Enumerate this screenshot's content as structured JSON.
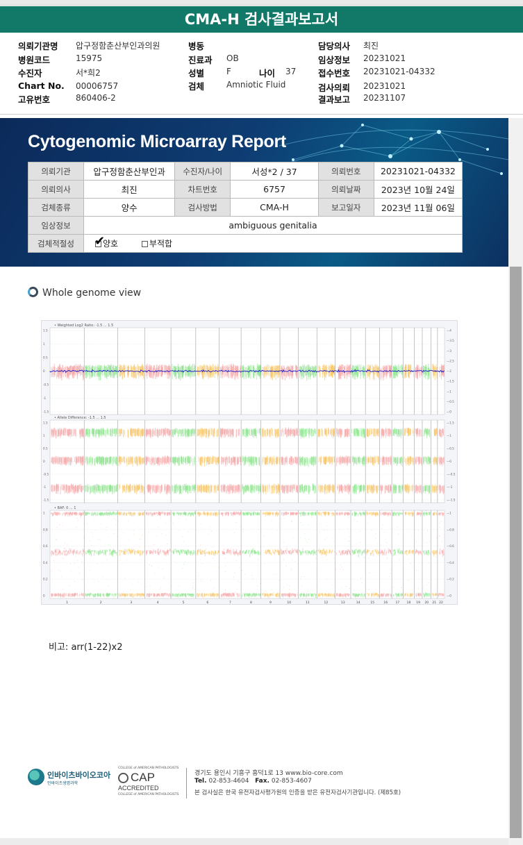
{
  "report_title": "CMA-H 검사결과보고서",
  "header_info": {
    "institution_label": "의뢰기관명",
    "institution": "압구정함춘산부인과의원",
    "hospital_code_label": "병원코드",
    "hospital_code": "15975",
    "recipient_label": "수진자",
    "recipient": "서*희2",
    "chart_no_label": "Chart No.",
    "chart_no": "00006757",
    "unique_no_label": "고유번호",
    "unique_no": "860406-2",
    "ward_label": "병동",
    "ward": "",
    "dept_label": "진료과",
    "dept": "OB",
    "sex_label": "성별",
    "sex": "F",
    "age_label": "나이",
    "age": "37",
    "specimen_label": "검체",
    "specimen": "Amniotic Fluid",
    "doctor_label": "담당의사",
    "doctor": "최진",
    "clinical_label": "임상정보",
    "clinical": "20231021",
    "receipt_label": "접수번호",
    "receipt": "20231021-04332",
    "request_label": "검사의뢰",
    "request": "20231021",
    "result_label": "결과보고",
    "result": "20231107"
  },
  "banner": {
    "title": "Cytogenomic Microarray Report",
    "rows": [
      [
        {
          "h": "의뢰기관"
        },
        {
          "v": "압구정함춘산부인과"
        },
        {
          "h": "수진자/나이"
        },
        {
          "v": "서성*2 / 37"
        },
        {
          "h": "의뢰번호"
        },
        {
          "v": "20231021-04332"
        }
      ],
      [
        {
          "h": "의뢰의사"
        },
        {
          "v": "최진"
        },
        {
          "h": "차트번호"
        },
        {
          "v": "6757"
        },
        {
          "h": "의뢰날짜"
        },
        {
          "v": "2023년 10월 24일"
        }
      ],
      [
        {
          "h": "검체종류"
        },
        {
          "v": "양수"
        },
        {
          "h": "검사방법"
        },
        {
          "v": "CMA-H"
        },
        {
          "h": "보고일자"
        },
        {
          "v": "2023년 11월 06일"
        }
      ]
    ],
    "clinical_label": "임상정보",
    "clinical_value": "ambiguous genitalia",
    "fitness_label": "검체적절성",
    "fitness_good": "양호",
    "fitness_bad": "부적합",
    "fitness_checked": "양호"
  },
  "section_title": "Whole genome view",
  "plot": {
    "panel1_title": "Weighted Log2 Ratio: -1.5 ... 1.5",
    "panel2_title": "Allele Difference: -1.5 ... 1.5",
    "panel3_title": "BAF: 0 ... 1",
    "panel1_left_ticks": [
      "1.5",
      "1",
      "0.5",
      "0",
      "-0.5",
      "-1",
      "-1.5"
    ],
    "panel1_right_ticks": [
      "4",
      "3.5",
      "3",
      "2.5",
      "2",
      "1.5",
      "1",
      "0.5",
      "0"
    ],
    "panel2_left_ticks": [
      "1.5",
      "1",
      "0.5",
      "0",
      "-0.5",
      "-1",
      "-1.5"
    ],
    "panel2_right_ticks": [
      "1.5",
      "1",
      "0.5",
      "0",
      "-0.5",
      "-1",
      "-1.5"
    ],
    "panel3_left_ticks": [
      "1",
      "0.8",
      "0.6",
      "0.4",
      "0.2",
      "0"
    ],
    "panel3_right_ticks": [
      "1",
      "0.8",
      "0.6",
      "0.4",
      "0.2",
      "0"
    ],
    "chromosomes": [
      "1",
      "2",
      "3",
      "4",
      "5",
      "6",
      "7",
      "8",
      "9",
      "10",
      "11",
      "12",
      "13",
      "14",
      "15",
      "16",
      "17",
      "18",
      "19",
      "20",
      "21",
      "22"
    ],
    "chrom_sizes": [
      249,
      243,
      198,
      191,
      181,
      171,
      159,
      145,
      138,
      134,
      135,
      133,
      114,
      107,
      102,
      90,
      83,
      80,
      59,
      64,
      47,
      51
    ],
    "colors": [
      "#f4a7a7",
      "#8ee38e",
      "#f7c76a"
    ],
    "log2_line_color": "#1a1acc"
  },
  "remark_label": "비고:",
  "remark_value": "arr(1-22)x2",
  "footer": {
    "company": "인바이츠바이오코아",
    "company_sub": "인바이츠생명과학",
    "cap_top": "COLLEGE of AMERICAN PATHOLOGISTS",
    "cap_big": "CAP",
    "cap_accredited": "ACCREDITED",
    "cap_bottom": "COLLEGE of AMERICAN PATHOLOGISTS",
    "address": "경기도 용인시 기흥구 흥덕1로 13   www.bio-core.com",
    "tel_label": "Tel.",
    "tel": "02-853-4604",
    "fax_label": "Fax.",
    "fax": "02-853-4607",
    "cert": "본 검사실은 한국 유전자검사평가원의 인증을 받은 유전자검사기관입니다. (제85호)"
  }
}
